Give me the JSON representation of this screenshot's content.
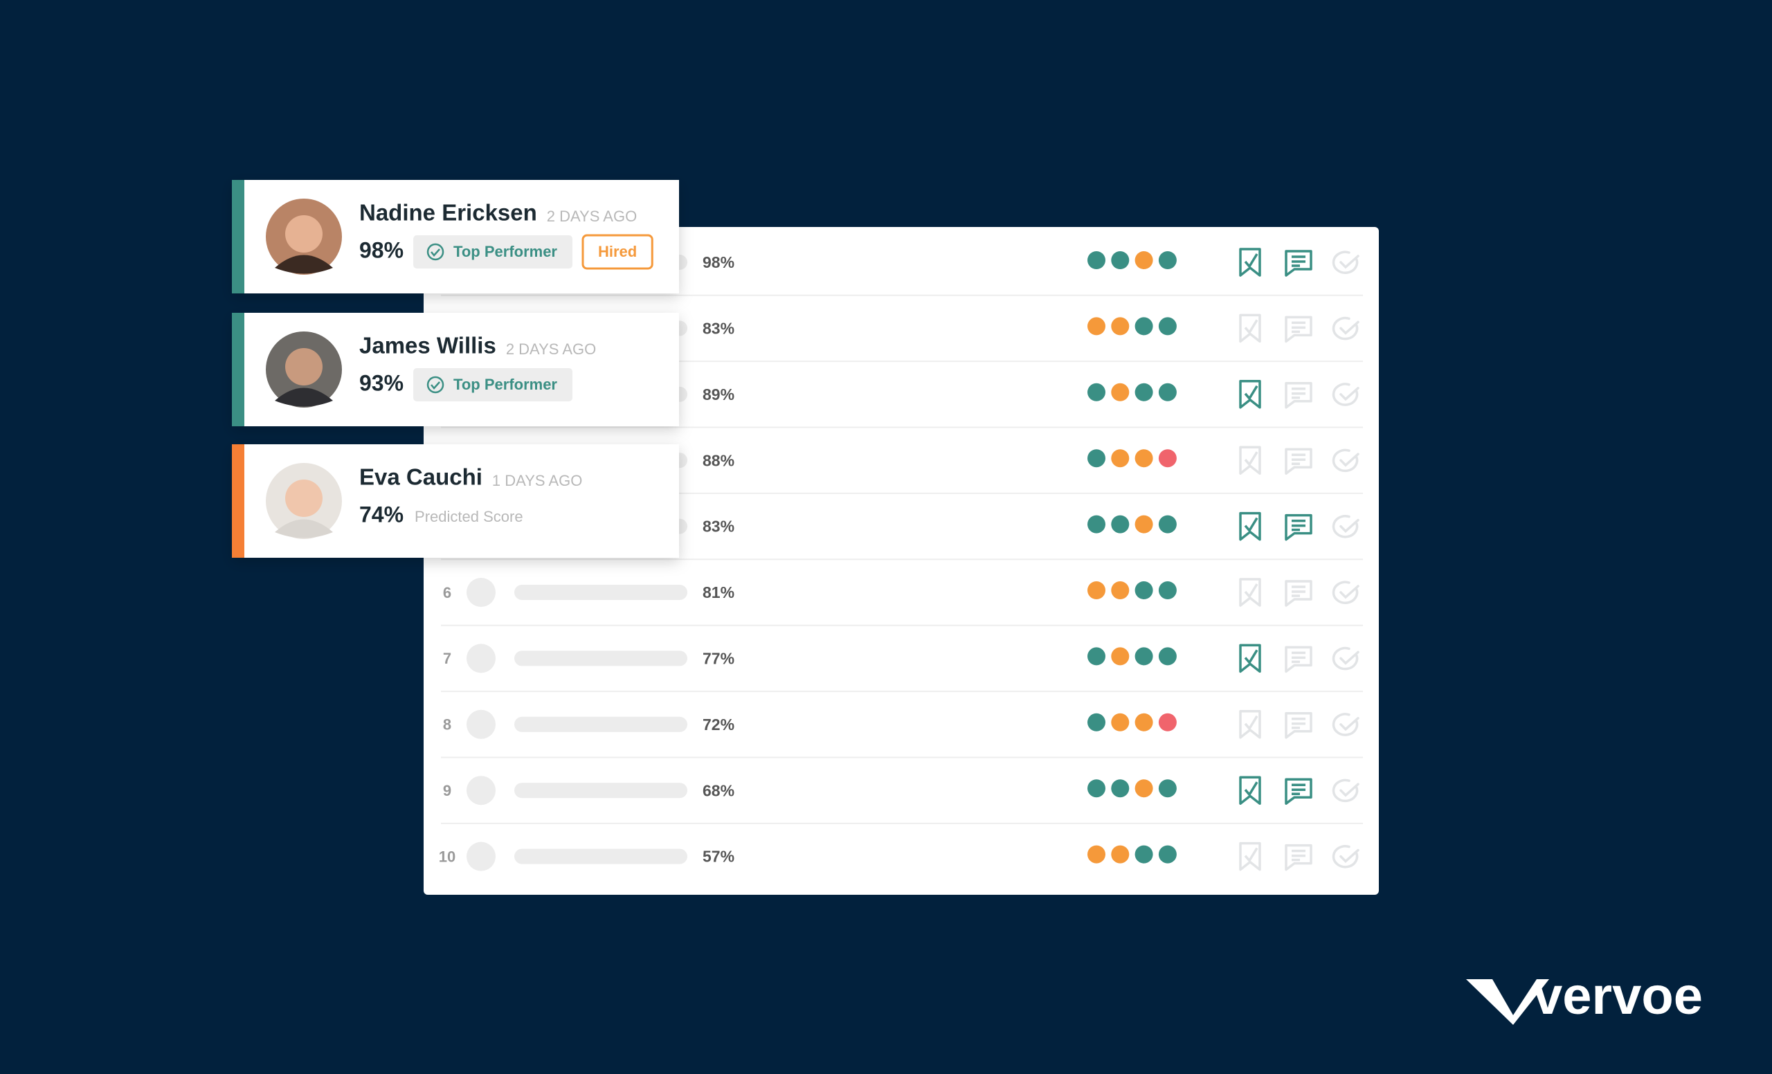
{
  "cards": [
    {
      "name": "Nadine Ericksen",
      "time": "2 DAYS AGO",
      "score": "98%",
      "tag": "Top Performer",
      "status": "Hired",
      "accent": "#3a8f84"
    },
    {
      "name": "James Willis",
      "time": "2 DAYS AGO",
      "score": "93%",
      "tag": "Top Performer",
      "accent": "#3a8f84"
    },
    {
      "name": "Eva Cauchi",
      "time": "1 DAYS AGO",
      "score": "74%",
      "note": "Predicted Score",
      "accent": "#f57f36"
    }
  ],
  "table": {
    "rows": [
      {
        "score": "98%",
        "dots": [
          "#3a8f84",
          "#3a8f84",
          "#f5993a",
          "#3a8f84"
        ],
        "shortlisted": true,
        "commented": true
      },
      {
        "score": "83%",
        "dots": [
          "#f5993a",
          "#f5993a",
          "#3a8f84",
          "#3a8f84"
        ],
        "shortlisted": false,
        "commented": false
      },
      {
        "score": "89%",
        "dots": [
          "#3a8f84",
          "#f5993a",
          "#3a8f84",
          "#3a8f84"
        ],
        "shortlisted": true,
        "commented": false
      },
      {
        "score": "88%",
        "dots": [
          "#3a8f84",
          "#f5993a",
          "#f5993a",
          "#f0646c"
        ],
        "shortlisted": false,
        "commented": false
      },
      {
        "score": "83%",
        "dots": [
          "#3a8f84",
          "#3a8f84",
          "#f5993a",
          "#3a8f84"
        ],
        "shortlisted": true,
        "commented": true
      },
      {
        "rank": "6",
        "score": "81%",
        "dots": [
          "#f5993a",
          "#f5993a",
          "#3a8f84",
          "#3a8f84"
        ],
        "shortlisted": false,
        "commented": false
      },
      {
        "rank": "7",
        "score": "77%",
        "dots": [
          "#3a8f84",
          "#f5993a",
          "#3a8f84",
          "#3a8f84"
        ],
        "shortlisted": true,
        "commented": false
      },
      {
        "rank": "8",
        "score": "72%",
        "dots": [
          "#3a8f84",
          "#f5993a",
          "#f5993a",
          "#f0646c"
        ],
        "shortlisted": false,
        "commented": false
      },
      {
        "rank": "9",
        "score": "68%",
        "dots": [
          "#3a8f84",
          "#3a8f84",
          "#f5993a",
          "#3a8f84"
        ],
        "shortlisted": true,
        "commented": true
      },
      {
        "rank": "10",
        "score": "57%",
        "dots": [
          "#f5993a",
          "#f5993a",
          "#3a8f84",
          "#3a8f84"
        ],
        "shortlisted": false,
        "commented": false
      }
    ]
  },
  "brand": "vervoe"
}
